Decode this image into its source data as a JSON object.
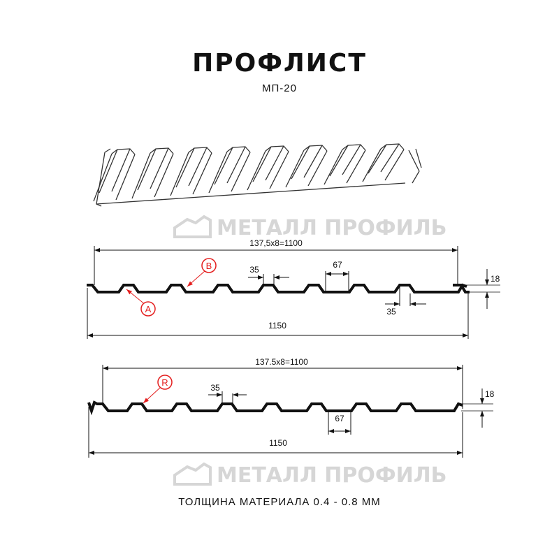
{
  "title": "ПРОФЛИСТ",
  "subtitle": "МП-20",
  "footer": "ТОЛЩИНА МАТЕРИАЛА 0.4 - 0.8 ММ",
  "watermark": "МЕТАЛЛ ПРОФИЛЬ",
  "colors": {
    "profile": "#111111",
    "callout": "#e41e1e",
    "watermark": "#d6d6d6"
  },
  "profile_a": {
    "pitch_dim": "137,5x8=1100",
    "width_dim": "1150",
    "top_flat_dim": "35",
    "bottom_flat_dim": "35",
    "bottom_width_dim": "67",
    "height_dim": "18",
    "callouts": [
      "A",
      "B"
    ]
  },
  "profile_b": {
    "pitch_dim": "137.5x8=1100",
    "width_dim": "1150",
    "top_flat_dim": "35",
    "bottom_width_dim": "67",
    "height_dim": "18",
    "callouts": [
      "R"
    ]
  }
}
